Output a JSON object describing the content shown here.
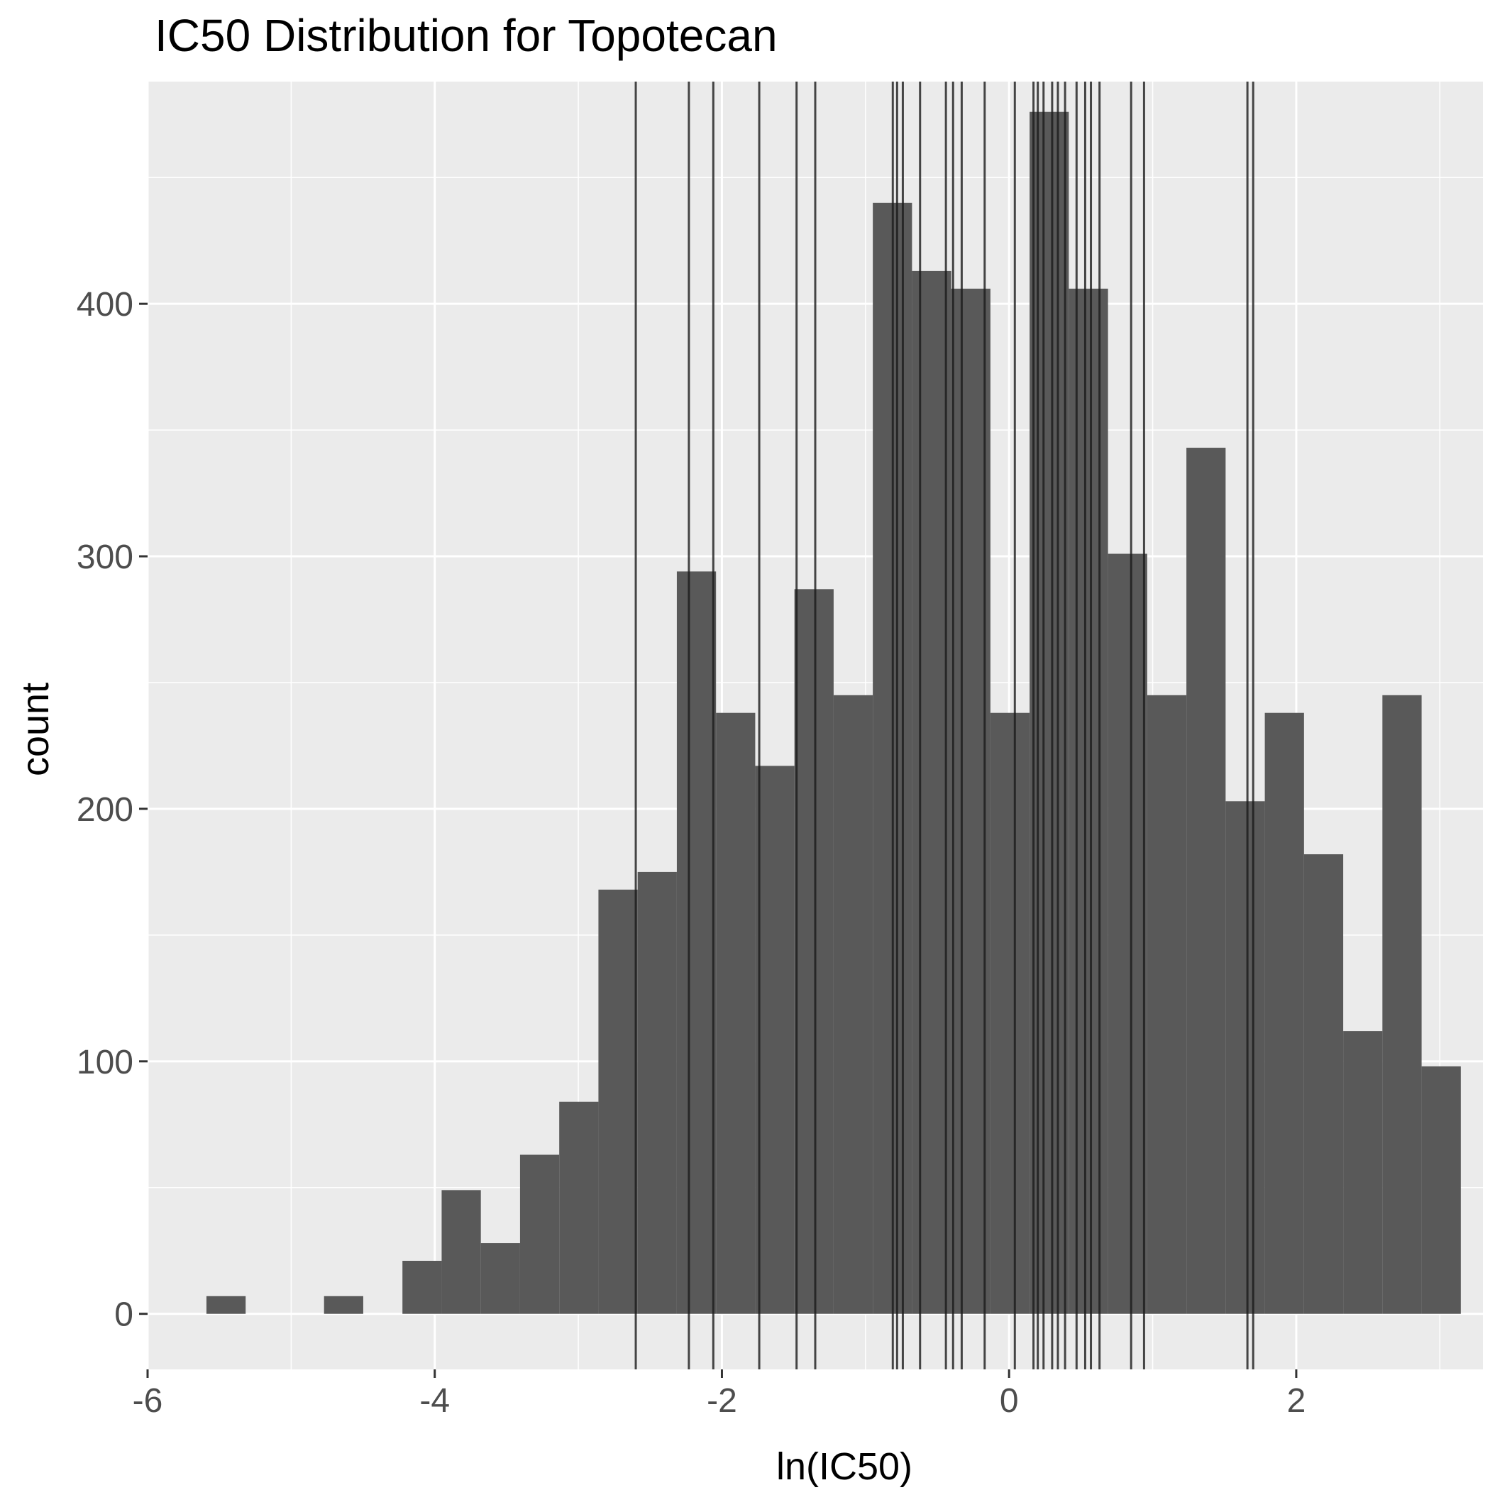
{
  "chart_data": {
    "type": "histogram",
    "title": "IC50 Distribution for Topotecan",
    "xlabel": "ln(IC50)",
    "ylabel": "count",
    "xlim": [
      -6.0,
      3.3
    ],
    "ylim": [
      -22,
      488
    ],
    "x_ticks": [
      -6,
      -4,
      -2,
      0,
      2
    ],
    "x_tick_labels": [
      "-6",
      "-4",
      "-2",
      "0",
      "2"
    ],
    "y_ticks": [
      0,
      100,
      200,
      300,
      400
    ],
    "y_tick_labels": [
      "0",
      "100",
      "200",
      "300",
      "400"
    ],
    "y_minor_ticks": [
      50,
      150,
      250,
      350,
      450
    ],
    "x_minor_ticks": [
      -5,
      -3,
      -1,
      1,
      3
    ],
    "bin_width": 0.273,
    "bins": [
      {
        "start": -5.59,
        "count": 7
      },
      {
        "start": -5.317,
        "count": 0
      },
      {
        "start": -5.044,
        "count": 0
      },
      {
        "start": -4.771,
        "count": 7
      },
      {
        "start": -4.498,
        "count": 0
      },
      {
        "start": -4.225,
        "count": 21
      },
      {
        "start": -3.952,
        "count": 49
      },
      {
        "start": -3.679,
        "count": 28
      },
      {
        "start": -3.406,
        "count": 63
      },
      {
        "start": -3.133,
        "count": 84
      },
      {
        "start": -2.86,
        "count": 168
      },
      {
        "start": -2.587,
        "count": 175
      },
      {
        "start": -2.314,
        "count": 294
      },
      {
        "start": -2.041,
        "count": 238
      },
      {
        "start": -1.768,
        "count": 217
      },
      {
        "start": -1.495,
        "count": 287
      },
      {
        "start": -1.222,
        "count": 245
      },
      {
        "start": -0.949,
        "count": 440
      },
      {
        "start": -0.676,
        "count": 413
      },
      {
        "start": -0.403,
        "count": 406
      },
      {
        "start": -0.13,
        "count": 238
      },
      {
        "start": 0.143,
        "count": 476
      },
      {
        "start": 0.416,
        "count": 406
      },
      {
        "start": 0.689,
        "count": 301
      },
      {
        "start": 0.962,
        "count": 245
      },
      {
        "start": 1.235,
        "count": 343
      },
      {
        "start": 1.508,
        "count": 203
      },
      {
        "start": 1.781,
        "count": 238
      },
      {
        "start": 2.054,
        "count": 182
      },
      {
        "start": 2.327,
        "count": 112
      },
      {
        "start": 2.6,
        "count": 245
      },
      {
        "start": 2.873,
        "count": 98
      }
    ],
    "vlines": [
      -2.6,
      -2.23,
      -2.06,
      -1.74,
      -1.48,
      -1.35,
      -0.81,
      -0.78,
      -0.74,
      -0.62,
      -0.44,
      -0.39,
      -0.33,
      -0.17,
      0.04,
      0.17,
      0.2,
      0.24,
      0.3,
      0.34,
      0.39,
      0.47,
      0.53,
      0.57,
      0.63,
      0.85,
      0.94,
      1.66,
      1.7
    ],
    "grid": true,
    "legend": "none",
    "colors": {
      "panel_background": "#ebebeb",
      "gridline": "#ffffff",
      "bar_fill": "#595959",
      "vline": "#1a1a1a",
      "tick_mark": "#333333"
    }
  }
}
